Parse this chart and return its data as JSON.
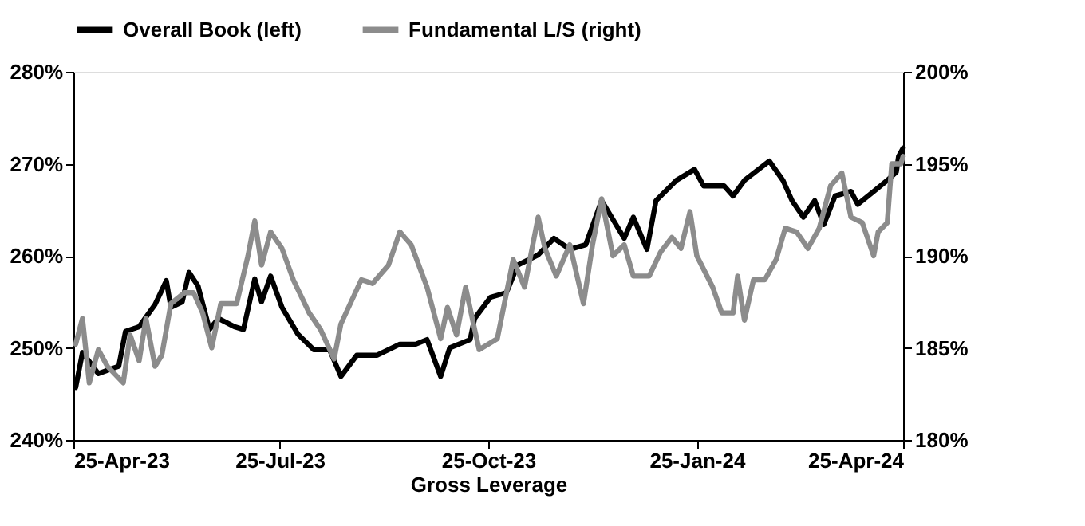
{
  "chart_data": {
    "type": "line",
    "xlabel": "Gross Leverage",
    "legend": "top",
    "grid": false,
    "line_style": "solid",
    "marker": "none",
    "xlim": [
      "2023-04-25",
      "2024-04-25"
    ],
    "xticks": [
      {
        "value": "2023-04-25",
        "label": "25-Apr-23"
      },
      {
        "value": "2023-07-25",
        "label": "25-Jul-23"
      },
      {
        "value": "2023-10-25",
        "label": "25-Oct-23"
      },
      {
        "value": "2024-01-25",
        "label": "25-Jan-24"
      },
      {
        "value": "2024-04-25",
        "label": "25-Apr-24"
      }
    ],
    "ylim": [
      240,
      280
    ],
    "yticks": [
      {
        "value": 240,
        "label": "240%"
      },
      {
        "value": 250,
        "label": "250%"
      },
      {
        "value": 260,
        "label": "260%"
      },
      {
        "value": 270,
        "label": "270%"
      },
      {
        "value": 280,
        "label": "280%"
      }
    ],
    "y2lim": [
      180,
      200
    ],
    "y2ticks": [
      {
        "value": 180,
        "label": "180%"
      },
      {
        "value": 185,
        "label": "185%"
      },
      {
        "value": 190,
        "label": "190%"
      },
      {
        "value": 195,
        "label": "195%"
      },
      {
        "value": 200,
        "label": "200%"
      }
    ],
    "series": [
      {
        "name": "Overall Book (left)",
        "color": "#000000",
        "x": [
          "2023-04-26",
          "2023-04-29",
          "2023-05-06",
          "2023-05-15",
          "2023-05-18",
          "2023-05-24",
          "2023-05-31",
          "2023-06-05",
          "2023-06-07",
          "2023-06-12",
          "2023-06-15",
          "2023-06-19",
          "2023-06-24",
          "2023-06-28",
          "2023-07-05",
          "2023-07-09",
          "2023-07-14",
          "2023-07-17",
          "2023-07-21",
          "2023-07-26",
          "2023-08-02",
          "2023-08-09",
          "2023-08-16",
          "2023-08-21",
          "2023-08-28",
          "2023-09-06",
          "2023-09-16",
          "2023-09-23",
          "2023-09-28",
          "2023-10-04",
          "2023-10-08",
          "2023-10-17",
          "2023-10-19",
          "2023-10-26",
          "2023-11-02",
          "2023-11-07",
          "2023-11-16",
          "2023-11-23",
          "2023-11-30",
          "2023-12-07",
          "2023-12-14",
          "2023-12-24",
          "2023-12-28",
          "2024-01-03",
          "2024-01-07",
          "2024-01-16",
          "2024-01-24",
          "2024-01-28",
          "2024-02-06",
          "2024-02-10",
          "2024-02-15",
          "2024-02-26",
          "2024-03-03",
          "2024-03-07",
          "2024-03-12",
          "2024-03-17",
          "2024-03-21",
          "2024-03-26",
          "2024-04-02",
          "2024-04-05",
          "2024-04-12",
          "2024-04-18",
          "2024-04-22",
          "2024-04-23",
          "2024-04-25"
        ],
        "values": [
          245.7,
          249.5,
          247.2,
          248.0,
          251.8,
          252.3,
          254.7,
          257.3,
          254.4,
          255.0,
          258.2,
          256.7,
          252.0,
          253.2,
          252.3,
          252.0,
          257.5,
          255.0,
          257.8,
          254.4,
          251.5,
          249.8,
          249.8,
          246.9,
          249.2,
          249.2,
          250.4,
          250.4,
          250.9,
          246.9,
          250.0,
          250.9,
          253.2,
          255.5,
          256.0,
          259.0,
          260.1,
          261.9,
          260.7,
          261.2,
          266.0,
          261.9,
          264.2,
          260.7,
          266.0,
          268.2,
          269.4,
          267.6,
          267.6,
          266.5,
          268.2,
          270.3,
          268.2,
          266.0,
          264.2,
          266.0,
          263.4,
          266.5,
          267.0,
          265.6,
          267.0,
          268.2,
          269.1,
          270.8,
          271.7
        ]
      },
      {
        "name": "Fundamental L/S (right)",
        "color": "#8c8c8c",
        "axis": "y2",
        "x": [
          "2023-04-26",
          "2023-04-29",
          "2023-05-02",
          "2023-05-06",
          "2023-05-10",
          "2023-05-17",
          "2023-05-20",
          "2023-05-24",
          "2023-05-27",
          "2023-05-31",
          "2023-06-03",
          "2023-06-07",
          "2023-06-13",
          "2023-06-17",
          "2023-06-21",
          "2023-06-25",
          "2023-06-29",
          "2023-07-03",
          "2023-07-06",
          "2023-07-11",
          "2023-07-14",
          "2023-07-17",
          "2023-07-21",
          "2023-07-26",
          "2023-07-31",
          "2023-08-07",
          "2023-08-12",
          "2023-08-18",
          "2023-08-21",
          "2023-08-30",
          "2023-09-04",
          "2023-09-11",
          "2023-09-16",
          "2023-09-21",
          "2023-09-28",
          "2023-10-04",
          "2023-10-07",
          "2023-10-11",
          "2023-10-15",
          "2023-10-19",
          "2023-10-21",
          "2023-10-29",
          "2023-11-05",
          "2023-11-10",
          "2023-11-16",
          "2023-11-19",
          "2023-11-24",
          "2023-11-30",
          "2023-12-06",
          "2023-12-10",
          "2023-12-14",
          "2023-12-19",
          "2023-12-24",
          "2023-12-28",
          "2024-01-04",
          "2024-01-09",
          "2024-01-14",
          "2024-01-18",
          "2024-01-22",
          "2024-01-25",
          "2024-02-01",
          "2024-02-05",
          "2024-02-10",
          "2024-02-12",
          "2024-02-15",
          "2024-02-19",
          "2024-02-24",
          "2024-02-29",
          "2024-03-04",
          "2024-03-09",
          "2024-03-14",
          "2024-03-19",
          "2024-03-24",
          "2024-03-29",
          "2024-04-02",
          "2024-04-07",
          "2024-04-12",
          "2024-04-14",
          "2024-04-18",
          "2024-04-20",
          "2024-04-24",
          "2024-04-25"
        ],
        "values": [
          185.2,
          186.6,
          183.1,
          184.9,
          184.0,
          183.1,
          185.7,
          184.3,
          186.6,
          184.0,
          184.6,
          187.4,
          188.0,
          188.0,
          186.9,
          185.0,
          187.4,
          187.4,
          187.4,
          190.0,
          191.9,
          189.5,
          191.3,
          190.4,
          188.7,
          186.9,
          186.0,
          184.4,
          186.3,
          188.7,
          188.5,
          189.5,
          191.3,
          190.6,
          188.3,
          185.5,
          187.2,
          185.7,
          188.3,
          186.0,
          184.9,
          185.5,
          189.8,
          188.3,
          192.1,
          190.4,
          188.9,
          190.6,
          187.4,
          190.6,
          193.1,
          190.0,
          190.6,
          188.9,
          188.9,
          190.2,
          191.0,
          190.4,
          192.4,
          190.0,
          188.3,
          186.9,
          186.9,
          188.9,
          186.5,
          188.7,
          188.7,
          189.8,
          191.5,
          191.3,
          190.4,
          191.5,
          193.8,
          194.5,
          192.1,
          191.8,
          190.0,
          191.3,
          191.8,
          195.0,
          195.0,
          195.4
        ]
      }
    ]
  }
}
